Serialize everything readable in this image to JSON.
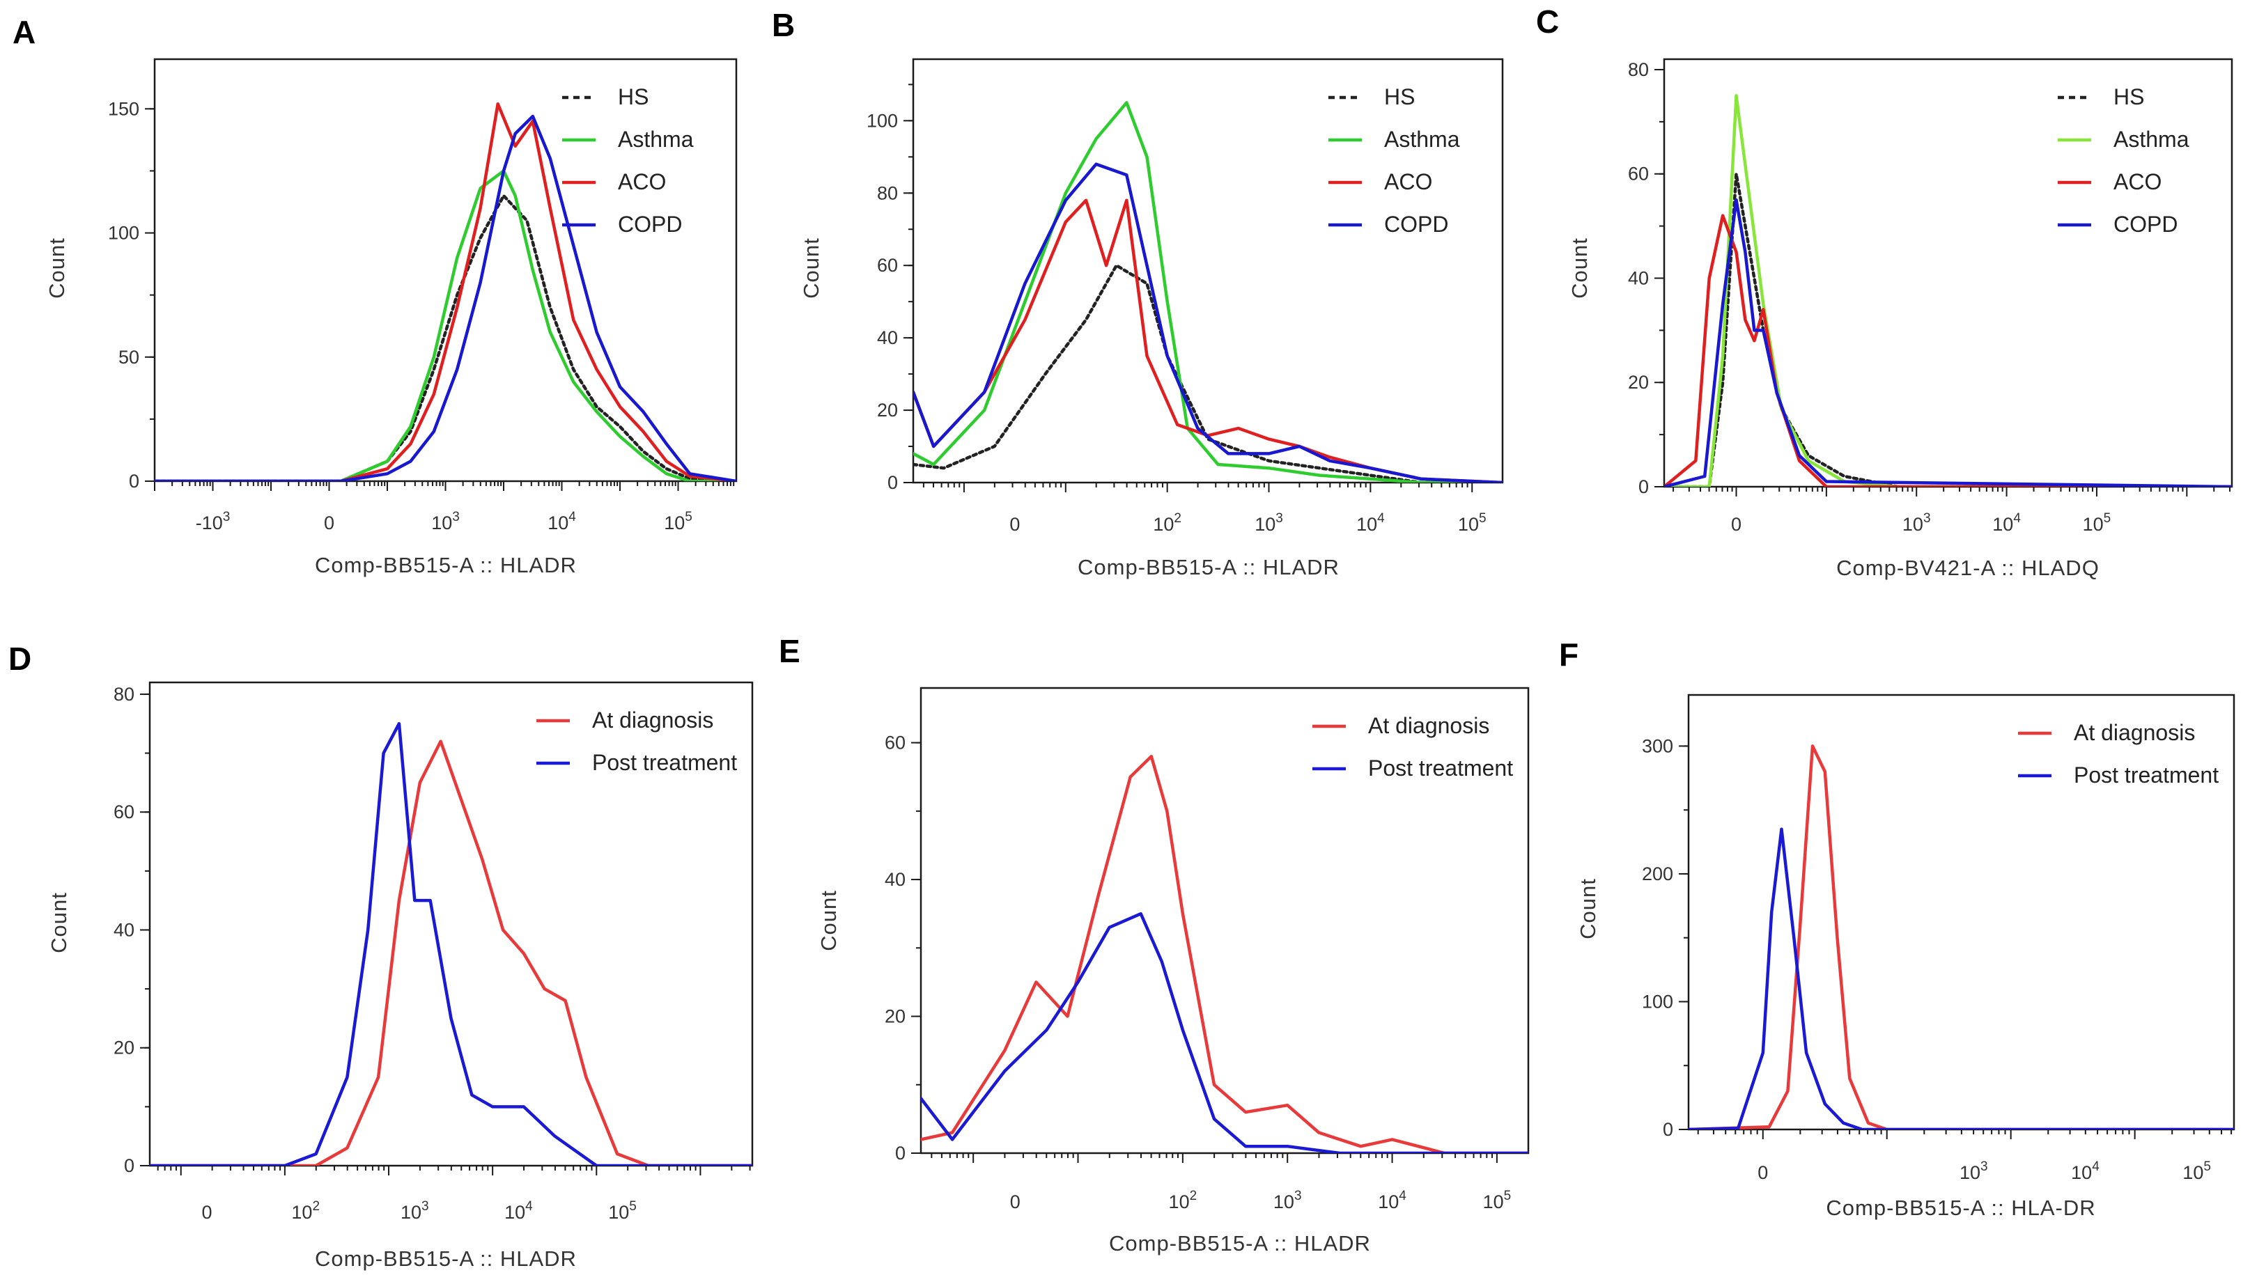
{
  "colors": {
    "HS": "#222222",
    "Asthma": "#2ecc2e",
    "Asthma_C": "#88e63a",
    "ACO": "#e02020",
    "COPD": "#1818d0",
    "At diagnosis": "#e83a3a",
    "Post treatment": "#1a1ad4"
  },
  "chart_data": [
    {
      "panel": "A",
      "type": "line",
      "xlabel": "Comp-BB515-A :: HLADR",
      "ylabel": "Count",
      "ylim": [
        0,
        170
      ],
      "xlim": [
        -4,
        6
      ],
      "yticks": [
        0,
        50,
        100,
        150
      ],
      "xticks": [
        {
          "pos": -3,
          "base": "-10",
          "exp": "3"
        },
        {
          "pos": -1,
          "base": "0",
          "exp": ""
        },
        {
          "pos": 1,
          "base": "10",
          "exp": "3"
        },
        {
          "pos": 3,
          "base": "10",
          "exp": "4"
        },
        {
          "pos": 5,
          "base": "10",
          "exp": "5"
        }
      ],
      "legend": [
        "HS",
        "Asthma",
        "ACO",
        "COPD"
      ],
      "series": [
        {
          "name": "HS",
          "style": "dotted",
          "x": [
            -4,
            -0.8,
            0,
            0.4,
            0.8,
            1.2,
            1.6,
            2.0,
            2.4,
            2.8,
            3.2,
            3.6,
            4.0,
            4.4,
            4.8,
            5.2,
            6
          ],
          "y": [
            0,
            0,
            8,
            20,
            45,
            75,
            98,
            115,
            105,
            70,
            45,
            30,
            22,
            12,
            5,
            1,
            0
          ]
        },
        {
          "name": "Asthma",
          "style": "solid",
          "x": [
            -4,
            -0.8,
            0,
            0.4,
            0.8,
            1.2,
            1.6,
            2.0,
            2.2,
            2.5,
            2.8,
            3.2,
            3.6,
            4.0,
            4.4,
            4.8,
            5.2,
            6
          ],
          "y": [
            0,
            0,
            8,
            22,
            50,
            90,
            118,
            125,
            115,
            85,
            60,
            40,
            28,
            18,
            10,
            3,
            0,
            0
          ]
        },
        {
          "name": "ACO",
          "style": "solid",
          "x": [
            -4,
            -0.8,
            0,
            0.4,
            0.8,
            1.2,
            1.6,
            1.9,
            2.2,
            2.5,
            2.8,
            3.2,
            3.6,
            4.0,
            4.4,
            4.8,
            5.2,
            6
          ],
          "y": [
            0,
            0,
            5,
            15,
            35,
            70,
            110,
            152,
            135,
            145,
            110,
            65,
            45,
            30,
            20,
            8,
            2,
            0
          ]
        },
        {
          "name": "COPD",
          "style": "solid",
          "x": [
            -4,
            -0.8,
            0,
            0.4,
            0.8,
            1.2,
            1.6,
            2.0,
            2.2,
            2.5,
            2.8,
            3.2,
            3.6,
            4.0,
            4.4,
            4.8,
            5.2,
            6
          ],
          "y": [
            0,
            0,
            3,
            8,
            20,
            45,
            80,
            125,
            140,
            147,
            130,
            95,
            60,
            38,
            28,
            15,
            3,
            0
          ]
        }
      ]
    },
    {
      "panel": "B",
      "type": "line",
      "xlabel": "Comp-BB515-A :: HLADR",
      "ylabel": "Count",
      "ylim": [
        0,
        117
      ],
      "xlim": [
        -0.5,
        5.3
      ],
      "yticks": [
        0,
        20,
        40,
        60,
        80,
        100
      ],
      "xticks": [
        {
          "pos": 0.5,
          "base": "0",
          "exp": ""
        },
        {
          "pos": 2,
          "base": "10",
          "exp": "2"
        },
        {
          "pos": 3,
          "base": "10",
          "exp": "3"
        },
        {
          "pos": 4,
          "base": "10",
          "exp": "4"
        },
        {
          "pos": 5,
          "base": "10",
          "exp": "5"
        }
      ],
      "legend": [
        "HS",
        "Asthma",
        "ACO",
        "COPD"
      ],
      "series": [
        {
          "name": "HS",
          "style": "dotted",
          "x": [
            -0.5,
            -0.2,
            0.3,
            0.8,
            1.2,
            1.5,
            1.8,
            2.0,
            2.4,
            3.0,
            3.5,
            4.0,
            4.5,
            5.3
          ],
          "y": [
            5,
            4,
            10,
            30,
            45,
            60,
            55,
            35,
            12,
            6,
            4,
            2,
            0,
            0
          ]
        },
        {
          "name": "Asthma",
          "style": "solid",
          "x": [
            -0.5,
            -0.3,
            0.2,
            0.6,
            1.0,
            1.3,
            1.6,
            1.8,
            2.0,
            2.2,
            2.5,
            3.0,
            3.5,
            4.0,
            4.5,
            5.3
          ],
          "y": [
            8,
            5,
            20,
            50,
            80,
            95,
            105,
            90,
            50,
            15,
            5,
            4,
            2,
            1,
            0,
            0
          ]
        },
        {
          "name": "ACO",
          "style": "solid",
          "x": [
            -0.5,
            -0.3,
            0.2,
            0.6,
            1.0,
            1.2,
            1.4,
            1.6,
            1.8,
            2.1,
            2.4,
            2.7,
            3.0,
            3.3,
            3.6,
            4.0,
            4.5,
            5.3
          ],
          "y": [
            25,
            10,
            25,
            45,
            72,
            78,
            60,
            78,
            35,
            16,
            13,
            15,
            12,
            10,
            7,
            4,
            1,
            0
          ]
        },
        {
          "name": "COPD",
          "style": "solid",
          "x": [
            -0.5,
            -0.3,
            0.2,
            0.6,
            1.0,
            1.3,
            1.6,
            1.8,
            2.0,
            2.3,
            2.6,
            3.0,
            3.3,
            3.6,
            4.0,
            4.5,
            5.3
          ],
          "y": [
            25,
            10,
            25,
            55,
            78,
            88,
            85,
            60,
            35,
            15,
            8,
            8,
            10,
            6,
            4,
            1,
            0
          ]
        }
      ]
    },
    {
      "panel": "C",
      "type": "line",
      "xlabel": "Comp-BV421-A :: HLADQ",
      "ylabel": "Count",
      "ylim": [
        0,
        82
      ],
      "xlim": [
        -0.8,
        5.5
      ],
      "yticks": [
        0,
        20,
        40,
        60,
        80
      ],
      "xticks": [
        {
          "pos": 0,
          "base": "0",
          "exp": ""
        },
        {
          "pos": 2,
          "base": "10",
          "exp": "3"
        },
        {
          "pos": 3,
          "base": "10",
          "exp": "4"
        },
        {
          "pos": 4,
          "base": "10",
          "exp": "5"
        }
      ],
      "legend": [
        "HS",
        "Asthma",
        "ACO",
        "COPD"
      ],
      "series": [
        {
          "name": "HS",
          "style": "dotted",
          "x": [
            -0.8,
            -0.3,
            -0.15,
            0,
            0.15,
            0.3,
            0.5,
            0.8,
            1.2,
            1.8,
            5.5
          ],
          "y": [
            0,
            0,
            20,
            60,
            45,
            30,
            15,
            6,
            2,
            0,
            0
          ]
        },
        {
          "name": "Asthma",
          "style": "solid",
          "x": [
            -0.8,
            -0.3,
            -0.15,
            0,
            0.15,
            0.3,
            0.5,
            0.8,
            1.2,
            1.8,
            5.5
          ],
          "y": [
            0,
            0,
            25,
            75,
            55,
            35,
            15,
            5,
            1,
            0,
            0
          ]
        },
        {
          "name": "ACO",
          "style": "solid",
          "x": [
            -0.8,
            -0.45,
            -0.3,
            -0.15,
            0,
            0.1,
            0.2,
            0.3,
            0.45,
            0.7,
            1.0,
            5.5
          ],
          "y": [
            0,
            5,
            40,
            52,
            45,
            32,
            28,
            34,
            18,
            5,
            0,
            0
          ]
        },
        {
          "name": "COPD",
          "style": "solid",
          "x": [
            -0.8,
            -0.35,
            -0.15,
            0,
            0.1,
            0.2,
            0.3,
            0.45,
            0.7,
            1.0,
            5.5
          ],
          "y": [
            0,
            2,
            35,
            55,
            45,
            30,
            30,
            18,
            6,
            1,
            0
          ]
        }
      ]
    },
    {
      "panel": "D",
      "type": "line",
      "xlabel": "Comp-BB515-A :: HLADR",
      "ylabel": "Count",
      "ylim": [
        0,
        82
      ],
      "xlim": [
        -0.3,
        5.5
      ],
      "yticks": [
        0,
        20,
        40,
        60,
        80
      ],
      "xticks": [
        {
          "pos": 0.25,
          "base": "0",
          "exp": ""
        },
        {
          "pos": 1.2,
          "base": "10",
          "exp": "2"
        },
        {
          "pos": 2.25,
          "base": "10",
          "exp": "3"
        },
        {
          "pos": 3.25,
          "base": "10",
          "exp": "4"
        },
        {
          "pos": 4.25,
          "base": "10",
          "exp": "5"
        }
      ],
      "legend": [
        "At diagnosis",
        "Post treatment"
      ],
      "series": [
        {
          "name": "At diagnosis",
          "style": "solid",
          "x": [
            -0.3,
            1.3,
            1.6,
            1.9,
            2.1,
            2.3,
            2.5,
            2.7,
            2.9,
            3.1,
            3.3,
            3.5,
            3.7,
            3.9,
            4.2,
            4.5,
            5.5
          ],
          "y": [
            0,
            0,
            3,
            15,
            45,
            65,
            72,
            62,
            52,
            40,
            36,
            30,
            28,
            15,
            2,
            0,
            0
          ]
        },
        {
          "name": "Post treatment",
          "style": "solid",
          "x": [
            -0.3,
            1.0,
            1.3,
            1.6,
            1.8,
            1.95,
            2.1,
            2.25,
            2.4,
            2.6,
            2.8,
            3.0,
            3.3,
            3.6,
            4.0,
            4.3,
            5.5
          ],
          "y": [
            0,
            0,
            2,
            15,
            40,
            70,
            75,
            45,
            45,
            25,
            12,
            10,
            10,
            5,
            0,
            0,
            0
          ]
        }
      ]
    },
    {
      "panel": "E",
      "type": "line",
      "xlabel": "Comp-BB515-A :: HLADR",
      "ylabel": "Count",
      "ylim": [
        0,
        68
      ],
      "xlim": [
        -0.5,
        5.3
      ],
      "yticks": [
        0,
        20,
        40,
        60
      ],
      "xticks": [
        {
          "pos": 0.4,
          "base": "0",
          "exp": ""
        },
        {
          "pos": 2,
          "base": "10",
          "exp": "2"
        },
        {
          "pos": 3,
          "base": "10",
          "exp": "3"
        },
        {
          "pos": 4,
          "base": "10",
          "exp": "4"
        },
        {
          "pos": 5,
          "base": "10",
          "exp": "5"
        }
      ],
      "legend": [
        "At diagnosis",
        "Post treatment"
      ],
      "series": [
        {
          "name": "At diagnosis",
          "style": "solid",
          "x": [
            -0.5,
            -0.2,
            0.3,
            0.6,
            0.9,
            1.2,
            1.5,
            1.7,
            1.85,
            2.0,
            2.3,
            2.6,
            3.0,
            3.3,
            3.7,
            4.0,
            4.5,
            5.3
          ],
          "y": [
            2,
            3,
            15,
            25,
            20,
            38,
            55,
            58,
            50,
            35,
            10,
            6,
            7,
            3,
            1,
            2,
            0,
            0
          ]
        },
        {
          "name": "Post treatment",
          "style": "solid",
          "x": [
            -0.5,
            -0.2,
            0.3,
            0.7,
            1.0,
            1.3,
            1.6,
            1.8,
            2.0,
            2.3,
            2.6,
            3.0,
            3.5,
            4.0,
            5.3
          ],
          "y": [
            8,
            2,
            12,
            18,
            25,
            33,
            35,
            28,
            18,
            5,
            1,
            1,
            0,
            0,
            0
          ]
        }
      ]
    },
    {
      "panel": "F",
      "type": "line",
      "xlabel": "Comp-BB515-A :: HLA-DR",
      "ylabel": "Count",
      "ylim": [
        0,
        340
      ],
      "xlim": [
        -0.6,
        3.8
      ],
      "yticks": [
        0,
        100,
        200,
        300
      ],
      "xticks": [
        {
          "pos": 0,
          "base": "0",
          "exp": ""
        },
        {
          "pos": 1.7,
          "base": "10",
          "exp": "3"
        },
        {
          "pos": 2.6,
          "base": "10",
          "exp": "4"
        },
        {
          "pos": 3.5,
          "base": "10",
          "exp": "5"
        }
      ],
      "legend": [
        "At diagnosis",
        "Post treatment"
      ],
      "series": [
        {
          "name": "At diagnosis",
          "style": "solid",
          "x": [
            -0.6,
            0.05,
            0.2,
            0.3,
            0.4,
            0.5,
            0.6,
            0.7,
            0.85,
            1.0,
            3.8
          ],
          "y": [
            0,
            2,
            30,
            160,
            300,
            280,
            150,
            40,
            5,
            0,
            0
          ]
        },
        {
          "name": "Post treatment",
          "style": "solid",
          "x": [
            -0.6,
            -0.2,
            0.0,
            0.07,
            0.15,
            0.25,
            0.35,
            0.5,
            0.65,
            0.8,
            3.8
          ],
          "y": [
            0,
            1,
            60,
            170,
            235,
            150,
            60,
            20,
            5,
            0,
            0
          ]
        }
      ]
    }
  ],
  "panel_letters": [
    "A",
    "B",
    "C",
    "D",
    "E",
    "F"
  ]
}
